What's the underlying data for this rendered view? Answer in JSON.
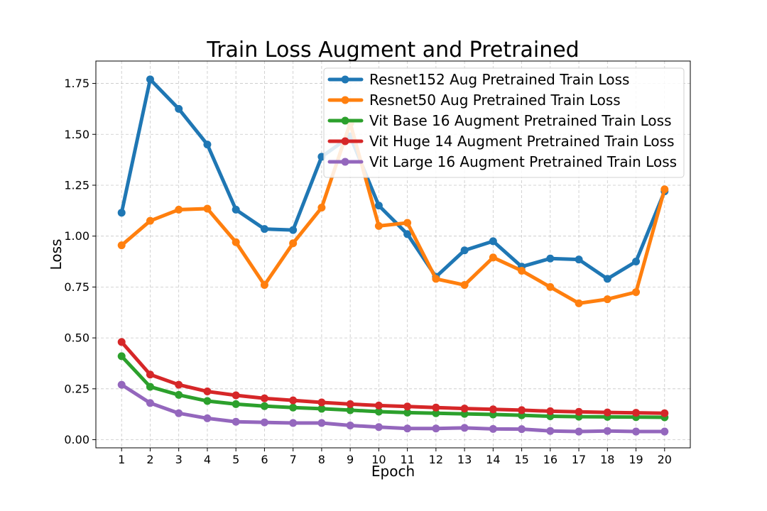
{
  "chart_data": {
    "type": "line",
    "title": "Train Loss Augment and Pretrained",
    "xlabel": "Epoch",
    "ylabel": "Loss",
    "x": [
      1,
      2,
      3,
      4,
      5,
      6,
      7,
      8,
      9,
      10,
      11,
      12,
      13,
      14,
      15,
      16,
      17,
      18,
      19,
      20
    ],
    "x_tick_labels": [
      "1",
      "2",
      "3",
      "4",
      "5",
      "6",
      "7",
      "8",
      "9",
      "10",
      "11",
      "12",
      "13",
      "14",
      "15",
      "16",
      "17",
      "18",
      "19",
      "20"
    ],
    "xlim": [
      0.1,
      20.9
    ],
    "ylim": [
      -0.04,
      1.86
    ],
    "y_ticks": [
      0.0,
      0.25,
      0.5,
      0.75,
      1.0,
      1.25,
      1.5,
      1.75
    ],
    "y_tick_labels": [
      "0.00",
      "0.25",
      "0.50",
      "0.75",
      "1.00",
      "1.25",
      "1.50",
      "1.75"
    ],
    "grid": true,
    "legend_position": "upper-right",
    "series": [
      {
        "name": "Resnet152 Aug Pretrained Train Loss",
        "color": "#1f77b4",
        "values": [
          1.115,
          1.77,
          1.625,
          1.45,
          1.13,
          1.035,
          1.03,
          1.39,
          1.49,
          1.15,
          1.01,
          0.8,
          0.93,
          0.975,
          0.85,
          0.89,
          0.885,
          0.79,
          0.875,
          1.22
        ]
      },
      {
        "name": "Resnet50 Aug Pretrained Train Loss",
        "color": "#ff7f0e",
        "values": [
          0.955,
          1.075,
          1.13,
          1.135,
          0.97,
          0.76,
          0.965,
          1.14,
          1.555,
          1.05,
          1.065,
          0.79,
          0.76,
          0.895,
          0.83,
          0.75,
          0.67,
          0.69,
          0.725,
          1.23
        ]
      },
      {
        "name": "Vit Base 16 Augment Pretrained Train Loss",
        "color": "#2ca02c",
        "values": [
          0.41,
          0.26,
          0.22,
          0.19,
          0.175,
          0.165,
          0.158,
          0.152,
          0.145,
          0.138,
          0.133,
          0.13,
          0.127,
          0.124,
          0.12,
          0.115,
          0.113,
          0.112,
          0.111,
          0.11
        ]
      },
      {
        "name": "Vit Huge 14 Augment Pretrained Train Loss",
        "color": "#d62728",
        "values": [
          0.48,
          0.32,
          0.27,
          0.237,
          0.218,
          0.203,
          0.193,
          0.183,
          0.175,
          0.168,
          0.163,
          0.158,
          0.153,
          0.149,
          0.145,
          0.14,
          0.137,
          0.134,
          0.132,
          0.13
        ]
      },
      {
        "name": "Vit Large 16 Augment Pretrained Train Loss",
        "color": "#9467bd",
        "values": [
          0.27,
          0.18,
          0.13,
          0.105,
          0.088,
          0.085,
          0.082,
          0.082,
          0.07,
          0.062,
          0.055,
          0.055,
          0.058,
          0.053,
          0.052,
          0.043,
          0.04,
          0.043,
          0.04,
          0.04
        ]
      }
    ]
  }
}
